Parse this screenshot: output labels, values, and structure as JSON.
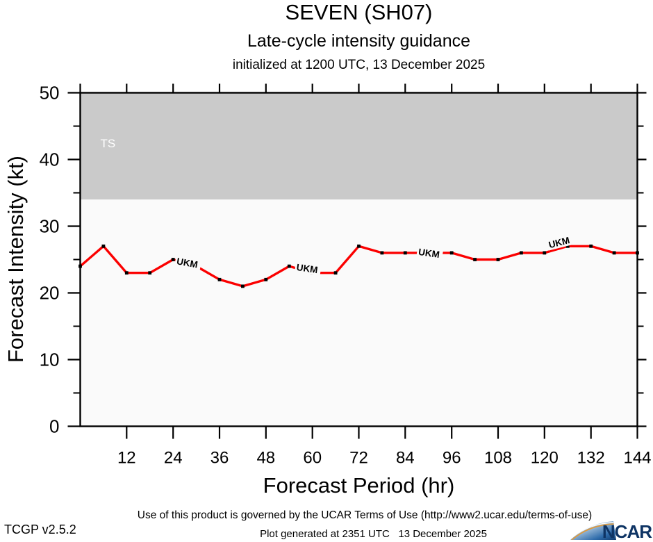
{
  "header": {
    "title": "SEVEN (SH07)",
    "subtitle": "Late-cycle intensity guidance",
    "initialization": "initialized at 1200 UTC, 13 December 2025"
  },
  "chart_data": {
    "type": "line",
    "title": "SEVEN (SH07)",
    "xlabel": "Forecast Period (hr)",
    "ylabel": "Forecast Intensity (kt)",
    "xlim": [
      0,
      144
    ],
    "ylim": [
      0,
      50
    ],
    "x_major_ticks": [
      12,
      24,
      36,
      48,
      60,
      72,
      84,
      96,
      108,
      120,
      132,
      144
    ],
    "x_top_ticks": [
      0,
      12,
      24,
      36,
      48,
      60,
      72,
      84,
      96,
      108,
      120,
      132,
      144
    ],
    "y_major_ticks": [
      0,
      10,
      20,
      30,
      40,
      50
    ],
    "y_minor_ticks": [
      5,
      15,
      25,
      35,
      45
    ],
    "grid": false,
    "plot_bg_color": "#fafafa",
    "shaded_zones": [
      {
        "label": "TS",
        "from": 34,
        "to": 50,
        "color": "#cacaca",
        "label_color": "#ffffff",
        "label_x": 5.2,
        "label_y": 41.8
      }
    ],
    "series": [
      {
        "name": "UKM",
        "color": "#fb0000",
        "marker_color": "#000000",
        "x": [
          0,
          6,
          12,
          18,
          24,
          30,
          36,
          42,
          48,
          54,
          60,
          66,
          72,
          78,
          84,
          90,
          96,
          102,
          108,
          114,
          120,
          126,
          132,
          138,
          144
        ],
        "values": [
          24,
          27,
          23,
          23,
          25,
          24,
          22,
          21,
          22,
          24,
          23,
          23,
          27,
          26,
          26,
          26,
          26,
          25,
          25,
          26,
          26,
          27,
          27,
          26,
          26
        ],
        "line_labels": [
          {
            "text": "UKM",
            "x": 24.8,
            "y": 24.3,
            "rotation": 10
          },
          {
            "text": "UKM",
            "x": 55.8,
            "y": 23.4,
            "rotation": 8
          },
          {
            "text": "UKM",
            "x": 87.3,
            "y": 25.7,
            "rotation": 8
          },
          {
            "text": "UKM",
            "x": 121.3,
            "y": 26.7,
            "rotation": -14
          }
        ]
      }
    ]
  },
  "footer": {
    "terms": "Use of this product is governed by the UCAR Terms of Use (http://www2.ucar.edu/terms-of-use)",
    "version": "TCGP v2.5.2",
    "generated": "Plot generated at 2351 UTC   13 December 2025"
  },
  "logo": {
    "text": "NCAR",
    "navy": "#0e3464",
    "orange": "#dd9a3f"
  }
}
